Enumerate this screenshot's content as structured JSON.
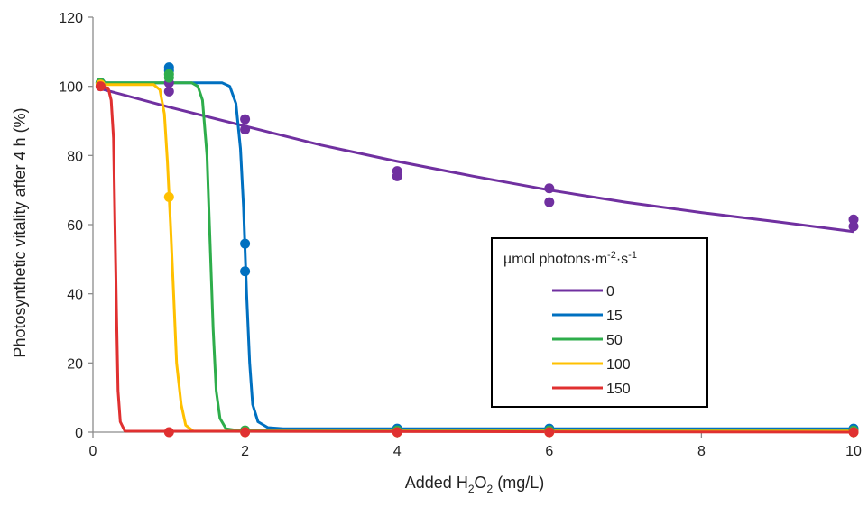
{
  "chart_data": {
    "type": "scatter",
    "title": "",
    "xlabel": {
      "prefix": "Added H",
      "sub1": "2",
      "mid": "O",
      "sub2": "2",
      "suffix": " (mg/L)"
    },
    "ylabel": "Photosynthetic vitality after 4 h (%)",
    "xlim": [
      0,
      10
    ],
    "ylim": [
      0,
      120
    ],
    "xticks": [
      0,
      2,
      4,
      6,
      8,
      10
    ],
    "yticks": [
      0,
      20,
      40,
      60,
      80,
      100,
      120
    ],
    "grid": false,
    "legend": {
      "placement": "center-right",
      "title": {
        "base": "µmol photons·m",
        "sup1": "-2",
        "mid": "·s",
        "sup2": "-1"
      }
    },
    "series": [
      {
        "name": "0",
        "color": "#7030A0",
        "points": [
          [
            0.1,
            101
          ],
          [
            0.1,
            100
          ],
          [
            1,
            98.5
          ],
          [
            1,
            101
          ],
          [
            2,
            90.5
          ],
          [
            2,
            87.5
          ],
          [
            4,
            75.5
          ],
          [
            4,
            74
          ],
          [
            6,
            70.5
          ],
          [
            6,
            66.5
          ],
          [
            10,
            61.5
          ],
          [
            10,
            59.5
          ]
        ],
        "curve": [
          [
            0.1,
            99.3
          ],
          [
            1,
            94
          ],
          [
            2,
            88.5
          ],
          [
            3,
            83
          ],
          [
            4,
            78.3
          ],
          [
            5,
            74
          ],
          [
            6,
            70
          ],
          [
            7,
            66.5
          ],
          [
            8,
            63.5
          ],
          [
            9,
            60.8
          ],
          [
            10,
            58
          ]
        ]
      },
      {
        "name": "15",
        "color": "#0070C0",
        "points": [
          [
            0.1,
            101
          ],
          [
            1,
            105.5
          ],
          [
            1,
            104.5
          ],
          [
            2,
            54.5
          ],
          [
            2,
            46.5
          ],
          [
            4,
            1
          ],
          [
            6,
            1
          ],
          [
            10,
            1
          ]
        ],
        "curve": [
          [
            0.1,
            101
          ],
          [
            1.7,
            101
          ],
          [
            1.8,
            100
          ],
          [
            1.88,
            95
          ],
          [
            1.94,
            82
          ],
          [
            1.98,
            65
          ],
          [
            2.02,
            40
          ],
          [
            2.06,
            20
          ],
          [
            2.1,
            8
          ],
          [
            2.17,
            3
          ],
          [
            2.3,
            1.3
          ],
          [
            2.5,
            1
          ],
          [
            10,
            1
          ]
        ]
      },
      {
        "name": "50",
        "color": "#2EAD4B",
        "points": [
          [
            0.1,
            101
          ],
          [
            1,
            103.5
          ],
          [
            1,
            102.5
          ],
          [
            2,
            0.5
          ],
          [
            4,
            0.5
          ],
          [
            6,
            0.5
          ],
          [
            10,
            0.5
          ]
        ],
        "curve": [
          [
            0.1,
            101
          ],
          [
            1.3,
            101
          ],
          [
            1.38,
            100
          ],
          [
            1.44,
            96
          ],
          [
            1.5,
            80
          ],
          [
            1.54,
            55
          ],
          [
            1.58,
            30
          ],
          [
            1.62,
            12
          ],
          [
            1.67,
            4
          ],
          [
            1.75,
            1
          ],
          [
            1.9,
            0.5
          ],
          [
            10,
            0.5
          ]
        ]
      },
      {
        "name": "100",
        "color": "#FFC000",
        "points": [
          [
            0.1,
            100.5
          ],
          [
            1,
            68
          ],
          [
            2,
            0
          ],
          [
            4,
            0
          ],
          [
            6,
            0
          ],
          [
            10,
            0
          ]
        ],
        "curve": [
          [
            0.1,
            100.5
          ],
          [
            0.8,
            100.5
          ],
          [
            0.88,
            99
          ],
          [
            0.94,
            92
          ],
          [
            0.98,
            78
          ],
          [
            1.02,
            60
          ],
          [
            1.06,
            40
          ],
          [
            1.1,
            20
          ],
          [
            1.16,
            8
          ],
          [
            1.22,
            2
          ],
          [
            1.32,
            0.3
          ],
          [
            10,
            0.3
          ]
        ]
      },
      {
        "name": "150",
        "color": "#E03030",
        "points": [
          [
            0.1,
            100
          ],
          [
            1,
            0
          ],
          [
            2,
            0
          ],
          [
            4,
            0
          ],
          [
            6,
            0
          ],
          [
            10,
            0
          ]
        ],
        "curve": [
          [
            0.1,
            100
          ],
          [
            0.2,
            99.5
          ],
          [
            0.24,
            96
          ],
          [
            0.27,
            85
          ],
          [
            0.29,
            60
          ],
          [
            0.31,
            35
          ],
          [
            0.33,
            12
          ],
          [
            0.36,
            3
          ],
          [
            0.42,
            0.3
          ],
          [
            10,
            0
          ]
        ]
      }
    ]
  }
}
